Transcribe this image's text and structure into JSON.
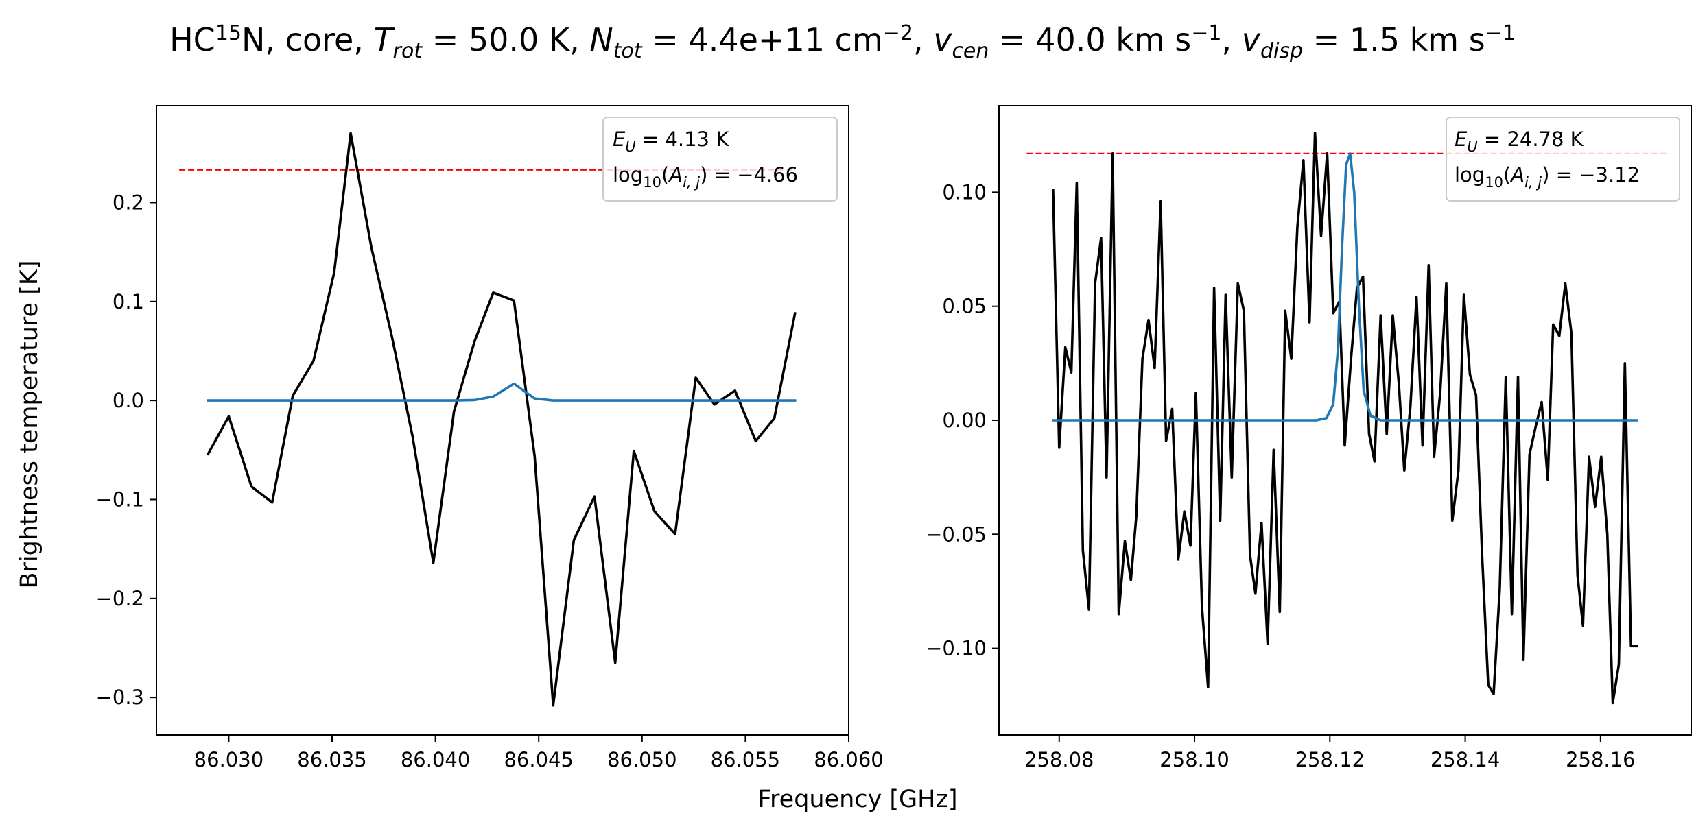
{
  "figure": {
    "title_parts": {
      "species": "HC",
      "isotope": "15",
      "species_rest": "N, core, ",
      "T": "T",
      "T_sub": "rot",
      "T_val": " =  50.0 K, ",
      "N": "N",
      "N_sub": "tot",
      "N_val": " =  4.4e+11 cm",
      "N_exp": "−2",
      "sep1": ", ",
      "v1": "v",
      "v1_sub": "cen",
      "v1_val": " =  40.0 km s",
      "v1_exp": "−1",
      "sep2": ", ",
      "v2": "v",
      "v2_sub": "disp",
      "v2_val": " =  1.5 km s",
      "v2_exp": "−1"
    },
    "xlabel": "Frequency [GHz]",
    "ylabel": "Brightness temperature [K]"
  },
  "chart_data": [
    {
      "type": "line",
      "xlim": [
        86.0265,
        86.06
      ],
      "ylim": [
        -0.338,
        0.298
      ],
      "xticks": [
        86.03,
        86.035,
        86.04,
        86.045,
        86.05,
        86.055,
        86.06
      ],
      "xtick_labels": [
        "86.030",
        "86.035",
        "86.040",
        "86.045",
        "86.050",
        "86.055",
        "86.060"
      ],
      "yticks": [
        -0.3,
        -0.2,
        -0.1,
        0.0,
        0.1,
        0.2
      ],
      "ytick_labels": [
        "−0.3",
        "−0.2",
        "−0.1",
        "0.0",
        "0.1",
        "0.2"
      ],
      "threshold": {
        "y": 0.233,
        "x": [
          86.0276,
          86.0574
        ],
        "color": "#ff0000"
      },
      "legend": {
        "line1_sym": "E",
        "line1_sub": "U",
        "line1_val": " = 4.13 K",
        "line2_sym": "log",
        "line2_sub": "10",
        "line2_open": "(",
        "line2_A": "A",
        "line2_A_sub": "i, j",
        "line2_val": ") = −4.66",
        "position": "top-right"
      },
      "series": [
        {
          "color": "#000000",
          "x": [
            86.029,
            86.03,
            86.0311,
            86.0321,
            86.0331,
            86.0341,
            86.0351,
            86.0359,
            86.0369,
            86.0379,
            86.0389,
            86.0399,
            86.0409,
            86.0419,
            86.0428,
            86.0438,
            86.0448,
            86.0457,
            86.0467,
            86.0477,
            86.0487,
            86.0496,
            86.0506,
            86.0516,
            86.0526,
            86.0535,
            86.0545,
            86.0555,
            86.0564,
            86.0574
          ],
          "y": [
            -0.054,
            -0.016,
            -0.087,
            -0.103,
            0.005,
            0.04,
            0.129,
            0.27,
            0.155,
            0.064,
            -0.037,
            -0.164,
            -0.011,
            0.06,
            0.109,
            0.101,
            -0.056,
            -0.308,
            -0.141,
            -0.097,
            -0.265,
            -0.051,
            -0.112,
            -0.135,
            0.023,
            -0.004,
            0.01,
            -0.041,
            -0.018,
            0.088
          ]
        },
        {
          "color": "#1f77b4",
          "x": [
            86.029,
            86.03,
            86.0311,
            86.0321,
            86.0331,
            86.0341,
            86.0351,
            86.0359,
            86.0369,
            86.0379,
            86.0389,
            86.0399,
            86.0409,
            86.0419,
            86.0428,
            86.0438,
            86.0448,
            86.0457,
            86.0467,
            86.0477,
            86.0487,
            86.0496,
            86.0506,
            86.0516,
            86.0526,
            86.0535,
            86.0545,
            86.0555,
            86.0564,
            86.0574
          ],
          "y": [
            0,
            0,
            0,
            0,
            0,
            0,
            0,
            0,
            0,
            0,
            0,
            0,
            0,
            0.0005,
            0.004,
            0.017,
            0.002,
            0,
            0,
            0,
            0,
            0,
            0,
            0,
            0,
            0,
            0,
            0,
            0,
            0
          ]
        }
      ]
    },
    {
      "type": "line",
      "xlim": [
        258.0711,
        258.1734
      ],
      "ylim": [
        -0.138,
        0.138
      ],
      "xticks": [
        258.08,
        258.1,
        258.12,
        258.14,
        258.16
      ],
      "xtick_labels": [
        "258.08",
        "258.10",
        "258.12",
        "258.14",
        "258.16"
      ],
      "yticks": [
        -0.1,
        -0.05,
        0.0,
        0.05,
        0.1
      ],
      "ytick_labels": [
        "−0.10",
        "−0.05",
        "0.00",
        "0.05",
        "0.10"
      ],
      "threshold": {
        "y": 0.117,
        "x": [
          258.0752,
          258.1702
        ],
        "color": "#ff0000"
      },
      "legend": {
        "line1_sym": "E",
        "line1_sub": "U",
        "line1_val": " = 24.78 K",
        "line2_sym": "log",
        "line2_sub": "10",
        "line2_open": "(",
        "line2_A": "A",
        "line2_A_sub": "i, j",
        "line2_val": ") = −3.12",
        "position": "top-right"
      },
      "series": [
        {
          "color": "#000000",
          "x": [
            258.0791,
            258.08,
            258.0809,
            258.0818,
            258.0826,
            258.0835,
            258.0844,
            258.0853,
            258.0862,
            258.087,
            258.0879,
            258.0888,
            258.0897,
            258.0906,
            258.0914,
            258.0923,
            258.0932,
            258.0941,
            258.095,
            258.0958,
            258.0967,
            258.0976,
            258.0985,
            258.0994,
            258.1002,
            258.1011,
            258.102,
            258.1029,
            258.1038,
            258.1046,
            258.1055,
            258.1064,
            258.1073,
            258.1082,
            258.109,
            258.1099,
            258.1108,
            258.1117,
            258.1126,
            258.1134,
            258.1143,
            258.1152,
            258.1161,
            258.117,
            258.1178,
            258.1187,
            258.1196,
            258.1205,
            258.1214,
            258.1222,
            258.1231,
            258.124,
            258.1249,
            258.1258,
            258.1266,
            258.1275,
            258.1284,
            258.1293,
            258.1302,
            258.131,
            258.1319,
            258.1328,
            258.1337,
            258.1346,
            258.1354,
            258.1363,
            258.1372,
            258.1381,
            258.139,
            258.1398,
            258.1407,
            258.1416,
            258.1425,
            258.1434,
            258.1442,
            258.1451,
            258.146,
            258.1469,
            258.1478,
            258.1486,
            258.1495,
            258.1504,
            258.1513,
            258.1522,
            258.153,
            258.1539,
            258.1548,
            258.1557,
            258.1566,
            258.1574,
            258.1583,
            258.1592,
            258.1601,
            258.161,
            258.1618,
            258.1627,
            258.1636,
            258.1645,
            258.1654
          ],
          "y": [
            0.101,
            -0.012,
            0.032,
            0.021,
            0.104,
            -0.057,
            -0.083,
            0.06,
            0.08,
            -0.025,
            0.117,
            -0.085,
            -0.053,
            -0.07,
            -0.042,
            0.027,
            0.044,
            0.023,
            0.096,
            -0.009,
            0.005,
            -0.061,
            -0.04,
            -0.055,
            0.012,
            -0.082,
            -0.117,
            0.058,
            -0.044,
            0.055,
            -0.025,
            0.06,
            0.048,
            -0.059,
            -0.076,
            -0.045,
            -0.098,
            -0.013,
            -0.084,
            0.048,
            0.027,
            0.085,
            0.114,
            0.043,
            0.126,
            0.081,
            0.117,
            0.047,
            0.052,
            -0.011,
            0.026,
            0.058,
            0.063,
            -0.006,
            -0.018,
            0.046,
            -0.006,
            0.046,
            0.016,
            -0.022,
            0.006,
            0.054,
            -0.011,
            0.068,
            -0.016,
            0.012,
            0.06,
            -0.044,
            -0.022,
            0.055,
            0.02,
            0.011,
            -0.059,
            -0.116,
            -0.12,
            -0.074,
            0.019,
            -0.085,
            0.019,
            -0.105,
            -0.015,
            -0.003,
            0.008,
            -0.026,
            0.042,
            0.037,
            0.06,
            0.038,
            -0.068,
            -0.09,
            -0.016,
            -0.038,
            -0.016,
            -0.05,
            -0.124,
            -0.107,
            0.025,
            -0.099,
            -0.099
          ],
          "note": ""
        },
        {
          "color": "#1f77b4",
          "x": [
            258.0791,
            258.118,
            258.1195,
            258.1205,
            258.1212,
            258.1218,
            258.1224,
            258.123,
            258.1236,
            258.1243,
            258.125,
            258.126,
            258.1275,
            258.1654
          ],
          "y": [
            0,
            0,
            0.001,
            0.007,
            0.031,
            0.076,
            0.112,
            0.117,
            0.1,
            0.05,
            0.013,
            0.002,
            0,
            0
          ]
        }
      ]
    }
  ]
}
